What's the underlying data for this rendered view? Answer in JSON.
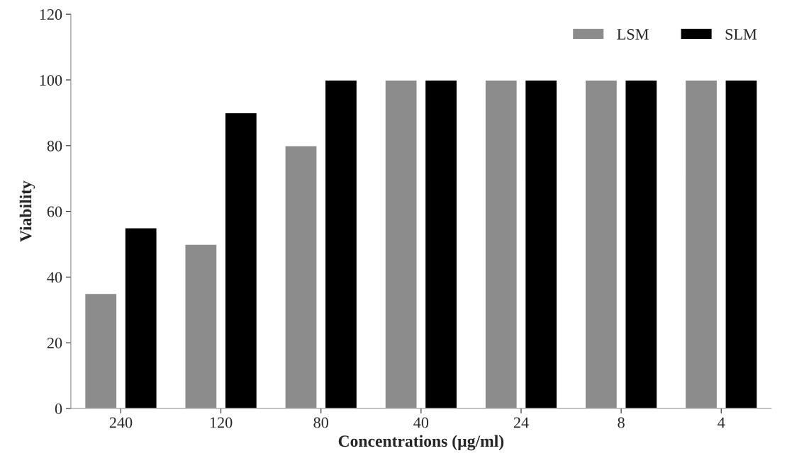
{
  "chart_data": {
    "type": "bar",
    "categories": [
      "240",
      "120",
      "80",
      "40",
      "24",
      "8",
      "4"
    ],
    "series": [
      {
        "name": "LSM",
        "color": "#8c8c8c",
        "values": [
          35,
          50,
          80,
          100,
          100,
          100,
          100
        ]
      },
      {
        "name": "SLM",
        "color": "#000000",
        "values": [
          55,
          90,
          100,
          100,
          100,
          100,
          100
        ]
      }
    ],
    "xlabel": "Concentrations (µg/ml)",
    "ylabel": "Viability",
    "ylim": [
      0,
      120
    ],
    "yticks": [
      0,
      20,
      40,
      60,
      80,
      100,
      120
    ],
    "grid": false,
    "legend": "top right"
  }
}
